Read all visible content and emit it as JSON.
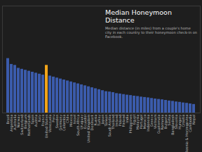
{
  "chart_data": {
    "type": "bar",
    "title": "Median Honeymoon Distance",
    "subtitle": "Median distance (in miles) from a couple's home city in each country to their honeymoon check-in on Facebook.",
    "categories": [
      "Brazil",
      "Argentina",
      "Australia",
      "Norway",
      "Switzerland",
      "Belgium",
      "Netherlands",
      "Spain",
      "Austria",
      "Italy",
      "France",
      "United States",
      "Venezuela",
      "Peru",
      "Sweden",
      "Germany",
      "Colombia",
      "Chile",
      "Mexico",
      "Israel",
      "South Africa",
      "Uruguay",
      "Ecuador",
      "United Kingdom",
      "Denmark",
      "Russia",
      "Turkey",
      "Japan",
      "Taiwan",
      "Saudi Arabia",
      "Thailand",
      "Ireland",
      "Poland",
      "Finland",
      "India",
      "Philippines",
      "Egypt",
      "Malaysia",
      "Portugal",
      "Morocco",
      "Indonesia",
      "Greece",
      "Vietnam",
      "Guatemala",
      "Romania",
      "Bulgaria",
      "Serbia",
      "Bangladesh",
      "Slovakia",
      "Hungary",
      "Croatia",
      "Bosnia & Herzegovina",
      "Cambodia",
      "Nepal"
    ],
    "values": [
      2800,
      2500,
      2450,
      2300,
      2250,
      2200,
      2150,
      2100,
      2050,
      2000,
      1950,
      2450,
      1900,
      1850,
      1800,
      1750,
      1700,
      1650,
      1600,
      1550,
      1500,
      1450,
      1400,
      1350,
      1300,
      1250,
      1200,
      1150,
      1100,
      1080,
      1050,
      1000,
      980,
      950,
      920,
      900,
      870,
      850,
      820,
      800,
      780,
      750,
      720,
      700,
      680,
      650,
      620,
      600,
      570,
      550,
      520,
      500,
      470,
      440
    ],
    "colors": [
      "#3b5bab",
      "#3b5bab",
      "#3b5bab",
      "#3b5bab",
      "#3b5bab",
      "#3b5bab",
      "#3b5bab",
      "#3b5bab",
      "#3b5bab",
      "#3b5bab",
      "#3b5bab",
      "#f2a51a",
      "#3b5bab",
      "#3b5bab",
      "#3b5bab",
      "#3b5bab",
      "#3b5bab",
      "#3b5bab",
      "#3b5bab",
      "#3b5bab",
      "#3b5bab",
      "#3b5bab",
      "#3b5bab",
      "#3b5bab",
      "#3b5bab",
      "#3b5bab",
      "#3b5bab",
      "#3b5bab",
      "#3b5bab",
      "#3b5bab",
      "#3b5bab",
      "#3b5bab",
      "#3b5bab",
      "#3b5bab",
      "#3b5bab",
      "#3b5bab",
      "#3b5bab",
      "#3b5bab",
      "#3b5bab",
      "#3b5bab",
      "#3b5bab",
      "#3b5bab",
      "#3b5bab",
      "#3b5bab",
      "#3b5bab",
      "#3b5bab",
      "#3b5bab",
      "#3b5bab",
      "#3b5bab",
      "#3b5bab",
      "#3b5bab",
      "#3b5bab",
      "#3b5bab",
      "#3b5bab"
    ],
    "ylim": [
      0,
      5500
    ],
    "yticks": [],
    "tick_labels": "x",
    "grid": false
  }
}
